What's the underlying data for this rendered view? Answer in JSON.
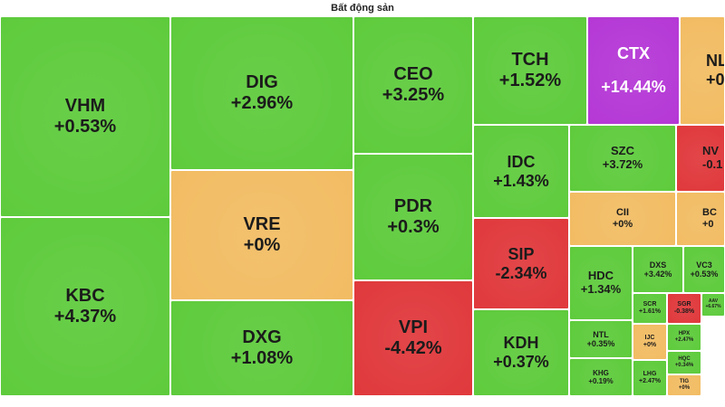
{
  "title": "Bất động sản",
  "colors": {
    "up": "#5ecb3c",
    "flat": "#f2bc63",
    "down": "#e0393c",
    "ceiling": "#b538d6"
  },
  "chart_data": {
    "type": "treemap",
    "title": "Bất động sản",
    "tiles": [
      {
        "symbol": "VHM",
        "change": "+0.53%",
        "value": 0.53,
        "status": "up"
      },
      {
        "symbol": "KBC",
        "change": "+4.37%",
        "value": 4.37,
        "status": "up"
      },
      {
        "symbol": "DIG",
        "change": "+2.96%",
        "value": 2.96,
        "status": "up"
      },
      {
        "symbol": "VRE",
        "change": "+0%",
        "value": 0,
        "status": "flat"
      },
      {
        "symbol": "DXG",
        "change": "+1.08%",
        "value": 1.08,
        "status": "up"
      },
      {
        "symbol": "CEO",
        "change": "+3.25%",
        "value": 3.25,
        "status": "up"
      },
      {
        "symbol": "PDR",
        "change": "+0.3%",
        "value": 0.3,
        "status": "up"
      },
      {
        "symbol": "VPI",
        "change": "-4.42%",
        "value": -4.42,
        "status": "down"
      },
      {
        "symbol": "TCH",
        "change": "+1.52%",
        "value": 1.52,
        "status": "up"
      },
      {
        "symbol": "IDC",
        "change": "+1.43%",
        "value": 1.43,
        "status": "up"
      },
      {
        "symbol": "SIP",
        "change": "-2.34%",
        "value": -2.34,
        "status": "down"
      },
      {
        "symbol": "KDH",
        "change": "+0.37%",
        "value": 0.37,
        "status": "up"
      },
      {
        "symbol": "CTX",
        "change": "+14.44%",
        "value": 14.44,
        "status": "ceiling"
      },
      {
        "symbol": "NL",
        "change": "+0",
        "value": null,
        "status": "flat"
      },
      {
        "symbol": "SZC",
        "change": "+3.72%",
        "value": 3.72,
        "status": "up"
      },
      {
        "symbol": "NV",
        "change": "-0.1",
        "value": null,
        "status": "down"
      },
      {
        "symbol": "CII",
        "change": "+0%",
        "value": 0,
        "status": "flat"
      },
      {
        "symbol": "BC",
        "change": "+0",
        "value": null,
        "status": "flat"
      },
      {
        "symbol": "HDC",
        "change": "+1.34%",
        "value": 1.34,
        "status": "up"
      },
      {
        "symbol": "DXS",
        "change": "+3.42%",
        "value": 3.42,
        "status": "up"
      },
      {
        "symbol": "VC3",
        "change": "+0.53%",
        "value": 0.53,
        "status": "up"
      },
      {
        "symbol": "SCR",
        "change": "+1.61%",
        "value": 1.61,
        "status": "up"
      },
      {
        "symbol": "SGR",
        "change": "-0.38%",
        "value": -0.38,
        "status": "down"
      },
      {
        "symbol": "AAV",
        "change": "+6.67%",
        "value": 6.67,
        "status": "up"
      },
      {
        "symbol": "NTL",
        "change": "+0.35%",
        "value": 0.35,
        "status": "up"
      },
      {
        "symbol": "HPX",
        "change": "+2.47%",
        "value": 2.47,
        "status": "up"
      },
      {
        "symbol": "IJC",
        "change": "+0%",
        "value": 0,
        "status": "flat"
      },
      {
        "symbol": "HQC",
        "change": "+0.34%",
        "value": 0.34,
        "status": "up"
      },
      {
        "symbol": "KHG",
        "change": "+0.19%",
        "value": 0.19,
        "status": "up"
      },
      {
        "symbol": "LHG",
        "change": "+2.47%",
        "value": 2.47,
        "status": "up"
      },
      {
        "symbol": "TIG",
        "change": "+0%",
        "value": 0,
        "status": "flat"
      }
    ]
  }
}
